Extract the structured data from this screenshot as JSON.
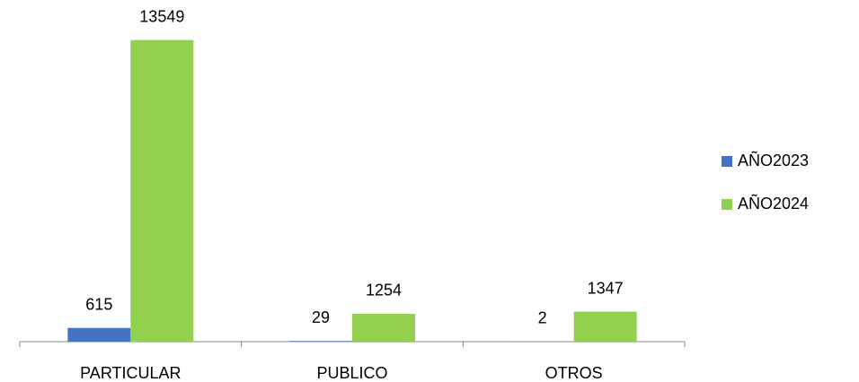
{
  "chart_data": {
    "type": "bar",
    "categories": [
      "PARTICULAR",
      "PUBLICO",
      "OTROS"
    ],
    "series": [
      {
        "name": "AÑO2023",
        "color": "#4472c4",
        "values": [
          615,
          29,
          2
        ]
      },
      {
        "name": "AÑO2024",
        "color": "#92d050",
        "values": [
          13549,
          1254,
          1347
        ]
      }
    ],
    "ylim": [
      0,
      14500
    ],
    "legend": "right"
  }
}
